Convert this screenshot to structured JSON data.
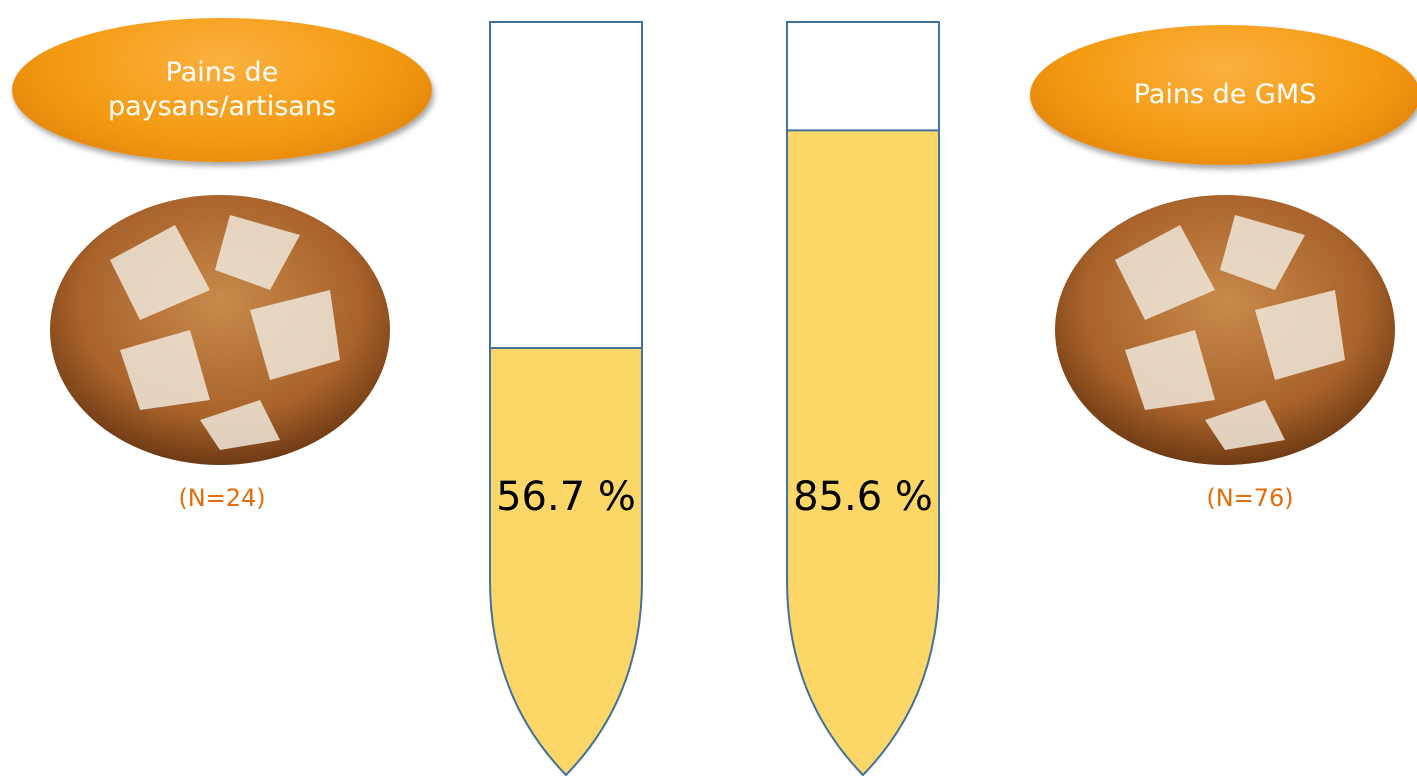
{
  "chart_data": {
    "type": "tube",
    "categories": [
      "Pains de paysans/artisans",
      "Pains de GMS"
    ],
    "sample_sizes": [
      "(N=24)",
      "(N=76)"
    ],
    "values": [
      56.7,
      85.6
    ],
    "value_labels": [
      "56.7 %",
      "85.6 %"
    ],
    "color": "#fcd667",
    "ylim": [
      0,
      100
    ]
  }
}
